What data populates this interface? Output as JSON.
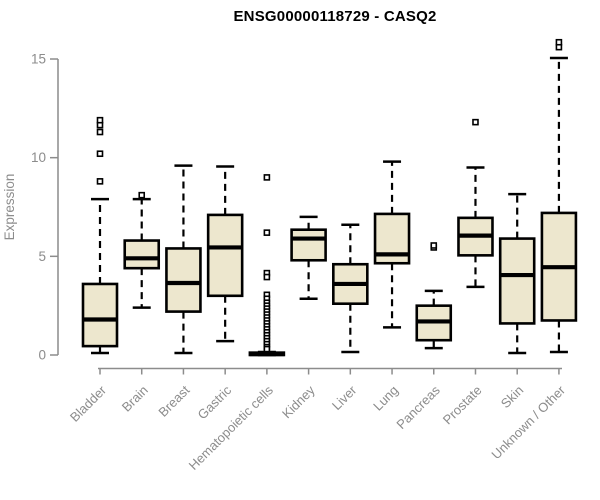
{
  "title": "ENSG00000118729 - CASQ2",
  "chart_data": {
    "type": "boxplot",
    "title": "ENSG00000118729 - CASQ2",
    "xlabel": "",
    "ylabel": "Expression",
    "ylim": [
      0,
      16
    ],
    "y_ticks": [
      0,
      5,
      10,
      15
    ],
    "grid": false,
    "legend": "none",
    "categories": [
      "Bladder",
      "Brain",
      "Breast",
      "Gastric",
      "Hematopoietic cells",
      "Kidney",
      "Liver",
      "Lung",
      "Pancreas",
      "Prostate",
      "Skin",
      "Unknown / Other"
    ],
    "series": [
      {
        "name": "Bladder",
        "whisker_low": 0.1,
        "q1": 0.45,
        "median": 1.8,
        "q3": 3.6,
        "whisker_high": 7.9,
        "outliers": [
          8.8,
          10.2,
          11.3,
          11.65,
          11.9
        ]
      },
      {
        "name": "Brain",
        "whisker_low": 2.4,
        "q1": 4.4,
        "median": 4.9,
        "q3": 5.8,
        "whisker_high": 7.9,
        "outliers": [
          8.1
        ]
      },
      {
        "name": "Breast",
        "whisker_low": 0.1,
        "q1": 2.2,
        "median": 3.65,
        "q3": 5.4,
        "whisker_high": 9.6,
        "outliers": []
      },
      {
        "name": "Gastric",
        "whisker_low": 0.7,
        "q1": 3.0,
        "median": 5.45,
        "q3": 7.1,
        "whisker_high": 9.55,
        "outliers": []
      },
      {
        "name": "Hematopoietic cells",
        "whisker_low": 0.0,
        "q1": 0.0,
        "median": 0.05,
        "q3": 0.12,
        "whisker_high": 0.15,
        "outliers": [
          9.0,
          6.2,
          4.15,
          3.95,
          3.05,
          2.85,
          2.65,
          2.5,
          2.35,
          2.2,
          2.05,
          1.9,
          1.75,
          1.6,
          1.45,
          1.3,
          1.15,
          1.0,
          0.85,
          0.7,
          0.55,
          0.4,
          0.3
        ]
      },
      {
        "name": "Kidney",
        "whisker_low": 2.85,
        "q1": 4.8,
        "median": 5.9,
        "q3": 6.35,
        "whisker_high": 7.0,
        "outliers": []
      },
      {
        "name": "Liver",
        "whisker_low": 0.15,
        "q1": 2.6,
        "median": 3.6,
        "q3": 4.6,
        "whisker_high": 6.6,
        "outliers": []
      },
      {
        "name": "Lung",
        "whisker_low": 1.4,
        "q1": 4.65,
        "median": 5.1,
        "q3": 7.15,
        "whisker_high": 9.8,
        "outliers": []
      },
      {
        "name": "Pancreas",
        "whisker_low": 0.35,
        "q1": 0.75,
        "median": 1.7,
        "q3": 2.5,
        "whisker_high": 3.25,
        "outliers": [
          5.45,
          5.55
        ]
      },
      {
        "name": "Prostate",
        "whisker_low": 3.45,
        "q1": 5.05,
        "median": 6.05,
        "q3": 6.95,
        "whisker_high": 9.5,
        "outliers": [
          11.8
        ]
      },
      {
        "name": "Skin",
        "whisker_low": 0.1,
        "q1": 1.6,
        "median": 4.05,
        "q3": 5.9,
        "whisker_high": 8.15,
        "outliers": []
      },
      {
        "name": "Unknown / Other",
        "whisker_low": 0.15,
        "q1": 1.75,
        "median": 4.45,
        "q3": 7.2,
        "whisker_high": 15.05,
        "outliers": [
          15.6,
          15.85
        ]
      }
    ]
  },
  "style": {
    "box_fill": "#EDE7CE",
    "box_border": "#000000",
    "median_color": "#000000",
    "axis_color": "#8c8c8c",
    "tick_label_color": "#8c8c8c",
    "title_color": "#000000",
    "background": "#ffffff"
  }
}
